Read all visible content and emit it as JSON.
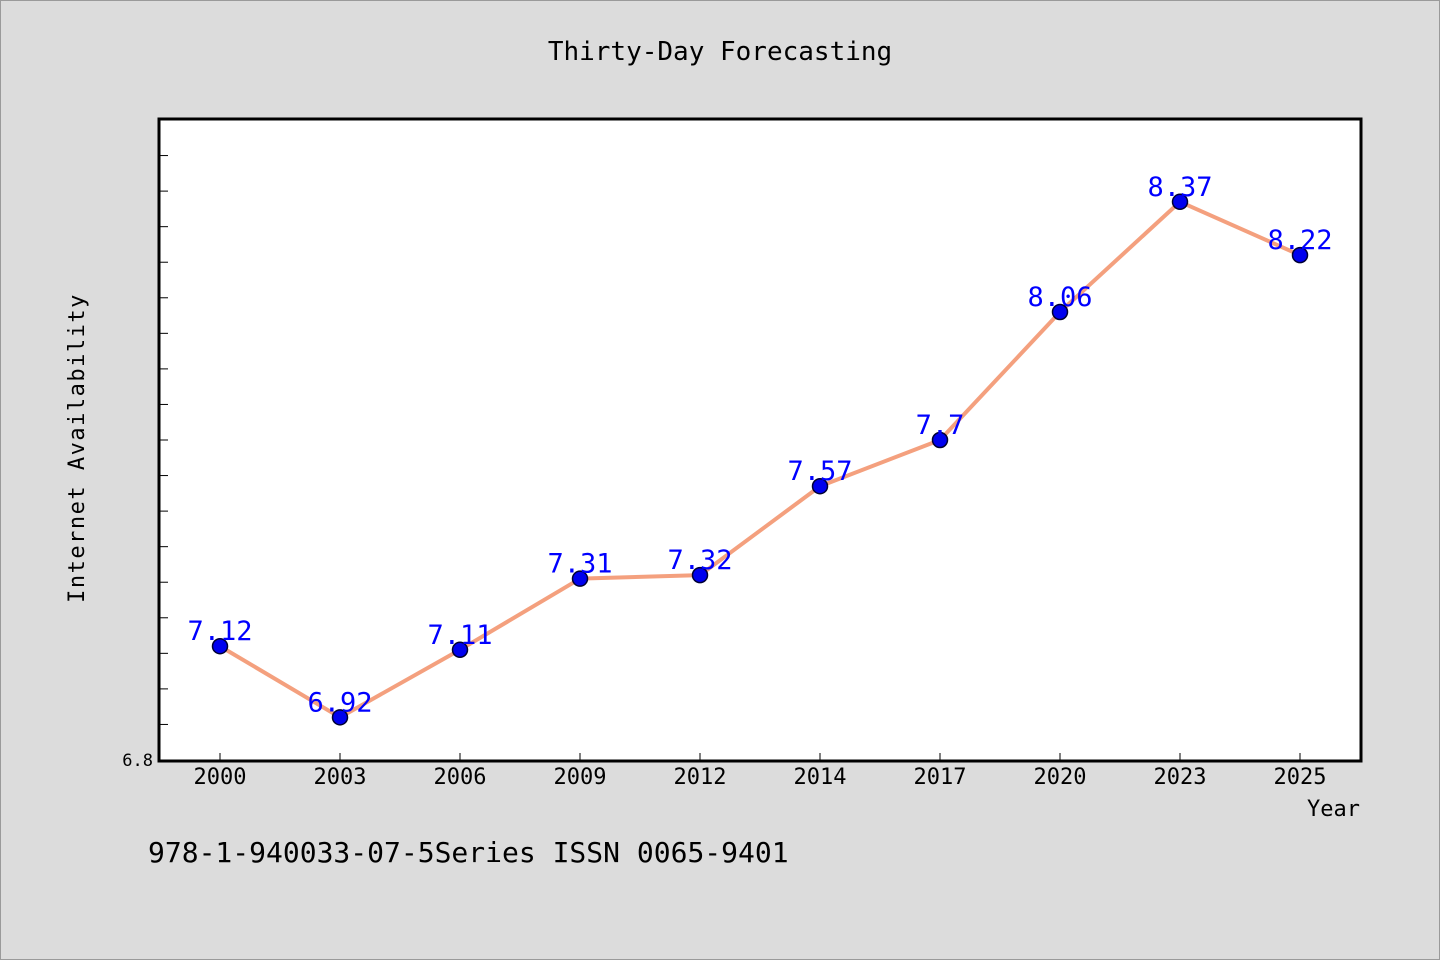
{
  "chart_data": {
    "type": "line",
    "title": "Thirty-Day Forecasting",
    "xlabel": "Year",
    "ylabel": "Internet Availability",
    "categories": [
      "2000",
      "2003",
      "2006",
      "2009",
      "2012",
      "2014",
      "2017",
      "2020",
      "2023",
      "2025"
    ],
    "series": [
      {
        "values": [
          7.12,
          6.92,
          7.11,
          7.31,
          7.32,
          7.57,
          7.7,
          8.06,
          8.37,
          8.22
        ]
      }
    ],
    "data_labels": [
      "7.12",
      "6.92",
      "7.11",
      "7.31",
      "7.32",
      "7.57",
      "7.7",
      "8.06",
      "8.37",
      "8.22"
    ],
    "ylim": [
      6.8,
      8.6
    ],
    "y_tick_labels": [
      {
        "value": 6.8,
        "label": "6.8"
      }
    ],
    "y_minor_tick_step": 0.1,
    "grid": false,
    "colors": {
      "line": "#f4a07e",
      "marker": "#0000ee",
      "marker_edge": "#000033",
      "data_label": "#0000ff",
      "plot_bg": "#ffffff",
      "page_bg": "#dcdcdc"
    }
  },
  "footer_text": "978-1-940033-07-5Series ISSN 0065-9401"
}
